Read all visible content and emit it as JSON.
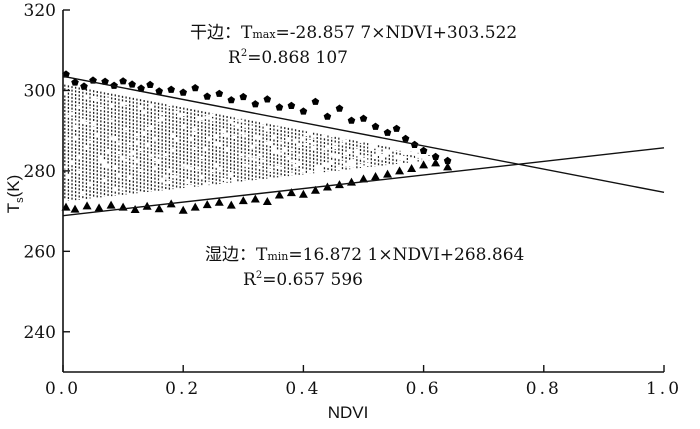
{
  "chart_data": {
    "type": "scatter",
    "xlabel": "NDVI",
    "ylabel": "Ts(K)",
    "ylabel_main": "T",
    "ylabel_sub": "s",
    "ylabel_unit": "(K)",
    "xlim": [
      0.0,
      1.0
    ],
    "ylim": [
      230,
      320
    ],
    "x_ticks": [
      0.0,
      0.2,
      0.4,
      0.6,
      0.8,
      1.0
    ],
    "x_tick_labels": [
      "0.0",
      "0.2",
      "0.4",
      "0.6",
      "0.8",
      "1.0"
    ],
    "y_ticks": [
      240,
      260,
      280,
      300,
      320
    ],
    "y_tick_labels": [
      "240",
      "260",
      "280",
      "300",
      "320"
    ],
    "grid": false,
    "lines": [
      {
        "name": "dry-edge",
        "slope": -28.8577,
        "intercept": 303.522
      },
      {
        "name": "wet-edge",
        "slope": 16.8721,
        "intercept": 268.864
      }
    ],
    "annotations": {
      "dry_prefix": "干边：",
      "dry_T": "T",
      "dry_sub": "max",
      "dry_rest": "=-28.857 7×NDVI+303.522",
      "dry_R": "R",
      "dry_sup": "2",
      "dry_r2": "=0.868 107",
      "wet_prefix": "湿边：",
      "wet_T": "T",
      "wet_sub": "min",
      "wet_rest": "=16.872 1×NDVI+268.864",
      "wet_R": "R",
      "wet_sup": "2",
      "wet_r2": "=0.657 596"
    },
    "dry_points": [
      [
        0.005,
        304.0
      ],
      [
        0.02,
        302.0
      ],
      [
        0.035,
        301.0
      ],
      [
        0.05,
        302.5
      ],
      [
        0.07,
        302.2
      ],
      [
        0.085,
        301.2
      ],
      [
        0.1,
        302.3
      ],
      [
        0.115,
        301.5
      ],
      [
        0.13,
        300.5
      ],
      [
        0.145,
        301.4
      ],
      [
        0.16,
        299.8
      ],
      [
        0.18,
        300.2
      ],
      [
        0.2,
        299.5
      ],
      [
        0.22,
        300.6
      ],
      [
        0.24,
        298.5
      ],
      [
        0.26,
        299.2
      ],
      [
        0.28,
        297.6
      ],
      [
        0.3,
        298.4
      ],
      [
        0.32,
        296.6
      ],
      [
        0.34,
        297.8
      ],
      [
        0.36,
        295.8
      ],
      [
        0.38,
        296.2
      ],
      [
        0.4,
        294.8
      ],
      [
        0.42,
        297.2
      ],
      [
        0.44,
        293.5
      ],
      [
        0.46,
        295.5
      ],
      [
        0.48,
        292.5
      ],
      [
        0.5,
        293.0
      ],
      [
        0.52,
        291.0
      ],
      [
        0.54,
        289.5
      ],
      [
        0.555,
        290.5
      ],
      [
        0.57,
        288.0
      ],
      [
        0.585,
        286.5
      ],
      [
        0.6,
        285.0
      ],
      [
        0.62,
        283.5
      ],
      [
        0.64,
        282.5
      ]
    ],
    "wet_points": [
      [
        0.005,
        271.0
      ],
      [
        0.02,
        270.5
      ],
      [
        0.04,
        271.3
      ],
      [
        0.06,
        270.8
      ],
      [
        0.08,
        271.5
      ],
      [
        0.1,
        271.0
      ],
      [
        0.12,
        270.4
      ],
      [
        0.14,
        271.2
      ],
      [
        0.16,
        270.6
      ],
      [
        0.18,
        271.8
      ],
      [
        0.2,
        270.2
      ],
      [
        0.22,
        271.0
      ],
      [
        0.24,
        271.6
      ],
      [
        0.26,
        272.2
      ],
      [
        0.28,
        271.5
      ],
      [
        0.3,
        272.6
      ],
      [
        0.32,
        273.0
      ],
      [
        0.34,
        272.4
      ],
      [
        0.36,
        274.0
      ],
      [
        0.38,
        274.6
      ],
      [
        0.4,
        274.2
      ],
      [
        0.42,
        275.2
      ],
      [
        0.44,
        276.0
      ],
      [
        0.46,
        276.6
      ],
      [
        0.48,
        277.2
      ],
      [
        0.5,
        278.0
      ],
      [
        0.52,
        278.6
      ],
      [
        0.54,
        279.2
      ],
      [
        0.56,
        280.0
      ],
      [
        0.58,
        280.6
      ],
      [
        0.6,
        281.5
      ],
      [
        0.62,
        282.0
      ],
      [
        0.64,
        281.0
      ]
    ],
    "cloud_x_range": [
      0.0,
      0.61
    ],
    "cloud_band_offset": [
      2.0,
      3.5
    ]
  }
}
